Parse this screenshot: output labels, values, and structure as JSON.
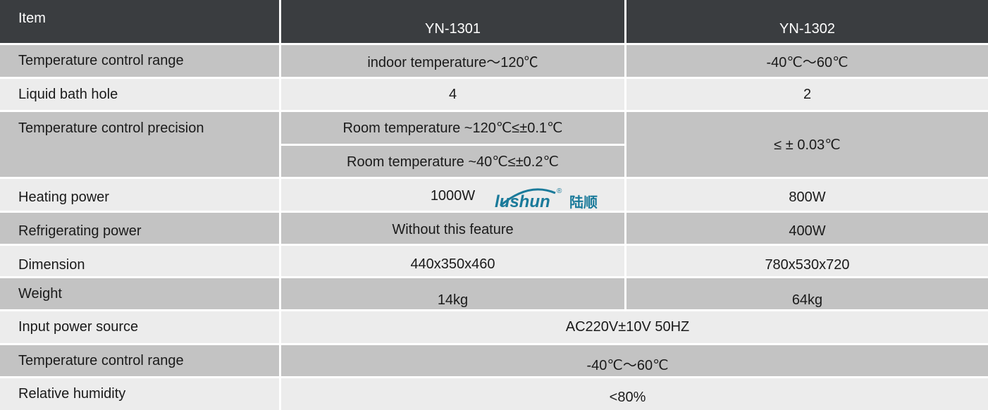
{
  "header": {
    "item": "Item",
    "model_a": "YN-1301",
    "model_b": "YN-1302"
  },
  "rows": [
    {
      "label": "Temperature control range",
      "a": "indoor temperature～120℃",
      "b": "-40℃～60℃"
    },
    {
      "label": "Liquid bath hole",
      "a": "4",
      "b": "2"
    },
    {
      "label": "Temperature control precision",
      "a1": "Room temperature ~120℃≤±0.1℃",
      "a2": "Room temperature ~40℃≤±0.2℃",
      "b": "≤ ± 0.03℃"
    },
    {
      "label": "Heating power",
      "a": "1000W",
      "b": "800W"
    },
    {
      "label": "Refrigerating power",
      "a": "Without this feature",
      "b": "400W"
    },
    {
      "label": "Dimension",
      "a": "440x350x460",
      "b": "780x530x720"
    },
    {
      "label": "Weight",
      "a": "14kg",
      "b": "64kg"
    },
    {
      "label": "Input power source",
      "ab": "AC220V±10V  50HZ"
    },
    {
      "label": "Temperature control range",
      "ab": "-40℃～60℃"
    },
    {
      "label": "Relative humidity",
      "ab": "<80%"
    }
  ],
  "watermark": {
    "text": "lushun",
    "cn": "陆顺",
    "mark": "®",
    "color": "#1a7a9a"
  }
}
